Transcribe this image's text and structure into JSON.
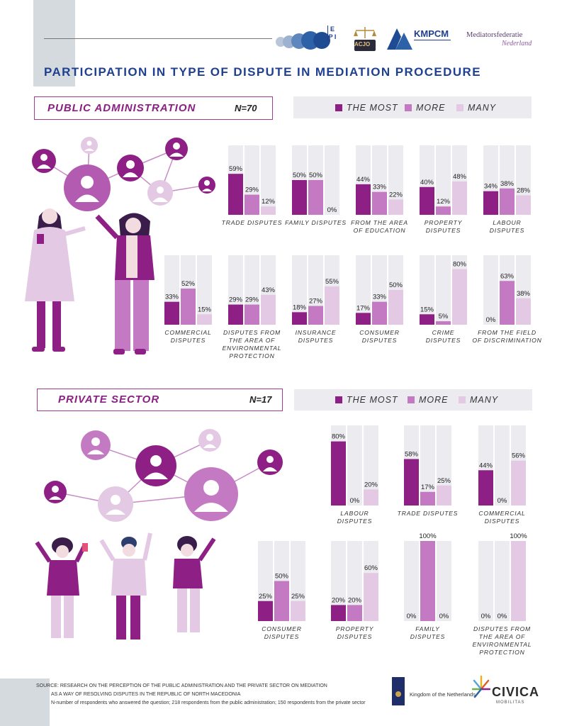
{
  "title": "PARTICIPATION IN TYPE OF DISPUTE IN MEDIATION PROCEDURE",
  "logos": {
    "epi": "E P I",
    "acjo": "ACJO",
    "kmpcm": "KMPCM",
    "mediators_line1": "Mediatorsfederatie",
    "mediators_line2": "Nederland"
  },
  "legend": {
    "the_most": "THE MOST",
    "more": "MORE",
    "many": "MANY"
  },
  "colors": {
    "the_most": "#8e1f85",
    "more": "#c37ac2",
    "many": "#e3c9e3",
    "track": "#ecebf0",
    "accent": "#8b1f82"
  },
  "public": {
    "label": "PUBLIC ADMINISTRATION",
    "n": "N=70"
  },
  "private": {
    "label": "PRIVATE SECTOR",
    "n": "N=17"
  },
  "chart_data": [
    {
      "type": "bar",
      "title": "PUBLIC ADMINISTRATION",
      "series_names": [
        "THE MOST",
        "MORE",
        "MANY"
      ],
      "groups": [
        {
          "label": [
            "TRADE DISPUTES"
          ],
          "values": [
            59,
            29,
            12
          ]
        },
        {
          "label": [
            "FAMILY DISPUTES"
          ],
          "values": [
            50,
            50,
            0
          ]
        },
        {
          "label": [
            "FROM THE AREA",
            "OF EDUCATION"
          ],
          "values": [
            44,
            33,
            22
          ]
        },
        {
          "label": [
            "PROPERTY",
            "DISPUTES"
          ],
          "values": [
            40,
            12,
            48
          ]
        },
        {
          "label": [
            "LABOUR",
            "DISPUTES"
          ],
          "values": [
            34,
            38,
            28
          ]
        },
        {
          "label": [
            "COMMERCIAL",
            "DISPUTES"
          ],
          "values": [
            33,
            52,
            15
          ]
        },
        {
          "label": [
            "DISPUTES FROM",
            "THE AREA OF",
            "ENVIRONMENTAL",
            "PROTECTION"
          ],
          "values": [
            29,
            29,
            43
          ]
        },
        {
          "label": [
            "INSURANCE",
            "DISPUTES"
          ],
          "values": [
            18,
            27,
            55
          ]
        },
        {
          "label": [
            "CONSUMER",
            "DISPUTES"
          ],
          "values": [
            17,
            33,
            50
          ]
        },
        {
          "label": [
            "CRIME",
            "DISPUTES"
          ],
          "values": [
            15,
            5,
            80
          ]
        },
        {
          "label": [
            "FROM THE FIELD",
            "OF DISCRIMINATION"
          ],
          "values": [
            0,
            63,
            38
          ]
        }
      ]
    },
    {
      "type": "bar",
      "title": "PRIVATE SECTOR",
      "series_names": [
        "THE MOST",
        "MORE",
        "MANY"
      ],
      "groups": [
        {
          "label": [
            "LABOUR",
            "DISPUTES"
          ],
          "values": [
            80,
            0,
            20
          ]
        },
        {
          "label": [
            "TRADE DISPUTES"
          ],
          "values": [
            58,
            17,
            25
          ]
        },
        {
          "label": [
            "COMMERCIAL",
            "DISPUTES"
          ],
          "values": [
            44,
            0,
            56
          ]
        },
        {
          "label": [
            "CONSUMER",
            "DISPUTES"
          ],
          "values": [
            25,
            50,
            25
          ]
        },
        {
          "label": [
            "PROPERTY",
            "DISPUTES"
          ],
          "values": [
            20,
            20,
            60
          ]
        },
        {
          "label": [
            "FAMILY",
            "DISPUTES"
          ],
          "values": [
            0,
            100,
            0
          ]
        },
        {
          "label": [
            "DISPUTES FROM",
            "THE AREA OF",
            "ENVIRONMENTAL",
            "PROTECTION"
          ],
          "values": [
            0,
            0,
            100
          ]
        }
      ]
    }
  ],
  "footer": {
    "line1": "SOURCE: RESEARCH ON THE PERCEPTION OF THE PUBLIC ADMINISTRATION AND THE PRIVATE SECTOR ON MEDIATION",
    "line2": "AS A WAY OF RESOLVING DISPUTES IN THE REPUBLIC OF NORTH MACEDONIA",
    "line3": "N-number of respondents who answered the question; 218 respondents from the public administration; 150 respondents from the private sector",
    "netherlands": "Kingdom of the Netherlands",
    "civica": "CIVICA",
    "civica_sub": "MOBILITAS"
  }
}
